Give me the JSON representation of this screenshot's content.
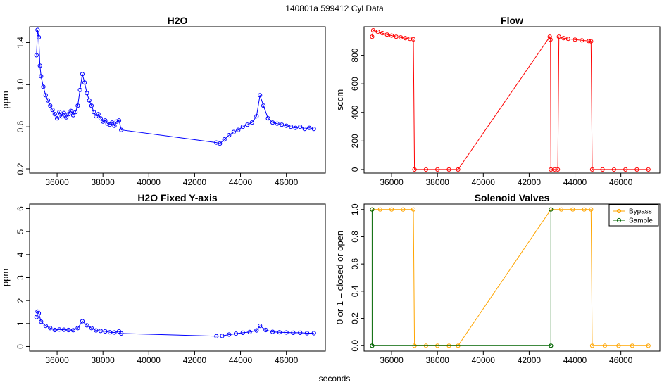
{
  "figure": {
    "title": "140801a   599412   Cyl Data",
    "xlabel": "seconds"
  },
  "chart_data": [
    {
      "type": "scatter",
      "title": "H2O",
      "xlabel": "",
      "ylabel": "ppm",
      "xlim": [
        34800,
        47700
      ],
      "ylim": [
        0.16,
        1.55
      ],
      "xticks": [
        36000,
        38000,
        40000,
        42000,
        44000,
        46000
      ],
      "yticks": [
        0.2,
        0.6,
        1.0,
        1.4
      ],
      "grid": false,
      "series": [
        {
          "color": "#0000ff",
          "marker": "open-circle",
          "lines": true,
          "points": [
            [
              35100,
              1.28
            ],
            [
              35150,
              1.52
            ],
            [
              35200,
              1.45
            ],
            [
              35250,
              1.18
            ],
            [
              35300,
              1.08
            ],
            [
              35400,
              0.98
            ],
            [
              35500,
              0.9
            ],
            [
              35600,
              0.85
            ],
            [
              35700,
              0.8
            ],
            [
              35800,
              0.76
            ],
            [
              35900,
              0.72
            ],
            [
              36000,
              0.68
            ],
            [
              36100,
              0.74
            ],
            [
              36200,
              0.7
            ],
            [
              36300,
              0.73
            ],
            [
              36400,
              0.69
            ],
            [
              36500,
              0.72
            ],
            [
              36600,
              0.75
            ],
            [
              36700,
              0.71
            ],
            [
              36800,
              0.74
            ],
            [
              36900,
              0.8
            ],
            [
              37000,
              0.95
            ],
            [
              37100,
              1.1
            ],
            [
              37200,
              1.02
            ],
            [
              37300,
              0.92
            ],
            [
              37400,
              0.85
            ],
            [
              37500,
              0.8
            ],
            [
              37600,
              0.74
            ],
            [
              37700,
              0.7
            ],
            [
              37800,
              0.72
            ],
            [
              37900,
              0.68
            ],
            [
              38000,
              0.65
            ],
            [
              38100,
              0.66
            ],
            [
              38200,
              0.63
            ],
            [
              38300,
              0.62
            ],
            [
              38400,
              0.64
            ],
            [
              38500,
              0.61
            ],
            [
              38600,
              0.65
            ],
            [
              38700,
              0.66
            ],
            [
              38800,
              0.57
            ],
            [
              42950,
              0.45
            ],
            [
              43100,
              0.44
            ],
            [
              43300,
              0.48
            ],
            [
              43500,
              0.52
            ],
            [
              43700,
              0.55
            ],
            [
              43900,
              0.57
            ],
            [
              44100,
              0.6
            ],
            [
              44300,
              0.62
            ],
            [
              44500,
              0.64
            ],
            [
              44700,
              0.7
            ],
            [
              44850,
              0.9
            ],
            [
              45000,
              0.8
            ],
            [
              45200,
              0.68
            ],
            [
              45400,
              0.64
            ],
            [
              45600,
              0.63
            ],
            [
              45800,
              0.62
            ],
            [
              46000,
              0.61
            ],
            [
              46200,
              0.6
            ],
            [
              46400,
              0.59
            ],
            [
              46600,
              0.6
            ],
            [
              46800,
              0.58
            ],
            [
              47000,
              0.59
            ],
            [
              47200,
              0.58
            ]
          ]
        }
      ]
    },
    {
      "type": "scatter",
      "title": "Flow",
      "xlabel": "",
      "ylabel": "sccm",
      "xlim": [
        34800,
        47700
      ],
      "ylim": [
        -25,
        1000
      ],
      "xticks": [
        36000,
        38000,
        40000,
        42000,
        44000,
        46000
      ],
      "yticks": [
        0,
        200,
        400,
        600,
        800
      ],
      "grid": false,
      "series": [
        {
          "color": "#ff0000",
          "marker": "open-circle",
          "lines": true,
          "points": [
            [
              35150,
              930
            ],
            [
              35200,
              975
            ],
            [
              35400,
              965
            ],
            [
              35600,
              955
            ],
            [
              35800,
              945
            ],
            [
              36000,
              938
            ],
            [
              36200,
              930
            ],
            [
              36400,
              925
            ],
            [
              36600,
              920
            ],
            [
              36800,
              915
            ],
            [
              36950,
              912
            ],
            [
              37000,
              0
            ],
            [
              37500,
              0
            ],
            [
              38000,
              0
            ],
            [
              38500,
              0
            ],
            [
              38900,
              0
            ],
            [
              42900,
              930
            ],
            [
              42930,
              910
            ],
            [
              42950,
              0
            ],
            [
              43100,
              0
            ],
            [
              43250,
              0
            ],
            [
              43300,
              930
            ],
            [
              43500,
              920
            ],
            [
              43700,
              915
            ],
            [
              44000,
              910
            ],
            [
              44300,
              905
            ],
            [
              44600,
              900
            ],
            [
              44700,
              898
            ],
            [
              44750,
              0
            ],
            [
              45200,
              0
            ],
            [
              45700,
              0
            ],
            [
              46200,
              0
            ],
            [
              46700,
              0
            ],
            [
              47200,
              0
            ]
          ]
        }
      ]
    },
    {
      "type": "scatter",
      "title": "H2O Fixed Y-axis",
      "xlabel": "",
      "ylabel": "ppm",
      "xlim": [
        34800,
        47700
      ],
      "ylim": [
        -0.2,
        6.2
      ],
      "xticks": [
        36000,
        38000,
        40000,
        42000,
        44000,
        46000
      ],
      "yticks": [
        0,
        1,
        2,
        3,
        4,
        5,
        6
      ],
      "grid": false,
      "series": [
        {
          "color": "#0000ff",
          "marker": "open-circle",
          "lines": true,
          "points": [
            [
              35100,
              1.28
            ],
            [
              35150,
              1.52
            ],
            [
              35200,
              1.45
            ],
            [
              35300,
              1.08
            ],
            [
              35500,
              0.9
            ],
            [
              35700,
              0.8
            ],
            [
              35900,
              0.72
            ],
            [
              36100,
              0.74
            ],
            [
              36300,
              0.73
            ],
            [
              36500,
              0.72
            ],
            [
              36700,
              0.71
            ],
            [
              36900,
              0.8
            ],
            [
              37100,
              1.1
            ],
            [
              37300,
              0.92
            ],
            [
              37500,
              0.8
            ],
            [
              37700,
              0.7
            ],
            [
              37900,
              0.68
            ],
            [
              38100,
              0.66
            ],
            [
              38300,
              0.62
            ],
            [
              38500,
              0.61
            ],
            [
              38700,
              0.66
            ],
            [
              38800,
              0.57
            ],
            [
              42950,
              0.45
            ],
            [
              43200,
              0.46
            ],
            [
              43500,
              0.52
            ],
            [
              43800,
              0.56
            ],
            [
              44100,
              0.6
            ],
            [
              44400,
              0.63
            ],
            [
              44700,
              0.7
            ],
            [
              44850,
              0.9
            ],
            [
              45100,
              0.72
            ],
            [
              45400,
              0.64
            ],
            [
              45700,
              0.62
            ],
            [
              46000,
              0.61
            ],
            [
              46300,
              0.6
            ],
            [
              46600,
              0.6
            ],
            [
              46900,
              0.58
            ],
            [
              47200,
              0.58
            ]
          ]
        }
      ]
    },
    {
      "type": "scatter",
      "title": "Solenoid Valves",
      "xlabel": "",
      "ylabel": "0 or 1 = closed or open",
      "xlim": [
        34800,
        47700
      ],
      "ylim": [
        -0.04,
        1.04
      ],
      "xticks": [
        36000,
        38000,
        40000,
        42000,
        44000,
        46000
      ],
      "yticks": [
        0.0,
        0.2,
        0.4,
        0.6,
        0.8,
        1.0
      ],
      "grid": false,
      "legend": {
        "position": "top-right",
        "entries": [
          "Bypass",
          "Sample"
        ]
      },
      "series": [
        {
          "name": "Bypass",
          "color": "#ffa500",
          "marker": "open-circle",
          "lines": true,
          "points": [
            [
              35150,
              1
            ],
            [
              35500,
              1
            ],
            [
              36000,
              1
            ],
            [
              36500,
              1
            ],
            [
              36950,
              1
            ],
            [
              37000,
              0
            ],
            [
              37500,
              0
            ],
            [
              38000,
              0
            ],
            [
              38500,
              0
            ],
            [
              38900,
              0
            ],
            [
              42950,
              1
            ],
            [
              43400,
              1
            ],
            [
              43900,
              1
            ],
            [
              44400,
              1
            ],
            [
              44700,
              1
            ],
            [
              44750,
              0
            ],
            [
              45300,
              0
            ],
            [
              45900,
              0
            ],
            [
              46500,
              0
            ],
            [
              47200,
              0
            ]
          ]
        },
        {
          "name": "Sample",
          "color": "#006400",
          "marker": "open-circle",
          "lines": true,
          "points": [
            [
              35150,
              0
            ],
            [
              35150,
              1
            ],
            [
              35150,
              0
            ],
            [
              42950,
              0
            ],
            [
              42950,
              1
            ],
            [
              42950,
              0
            ]
          ]
        }
      ]
    }
  ]
}
